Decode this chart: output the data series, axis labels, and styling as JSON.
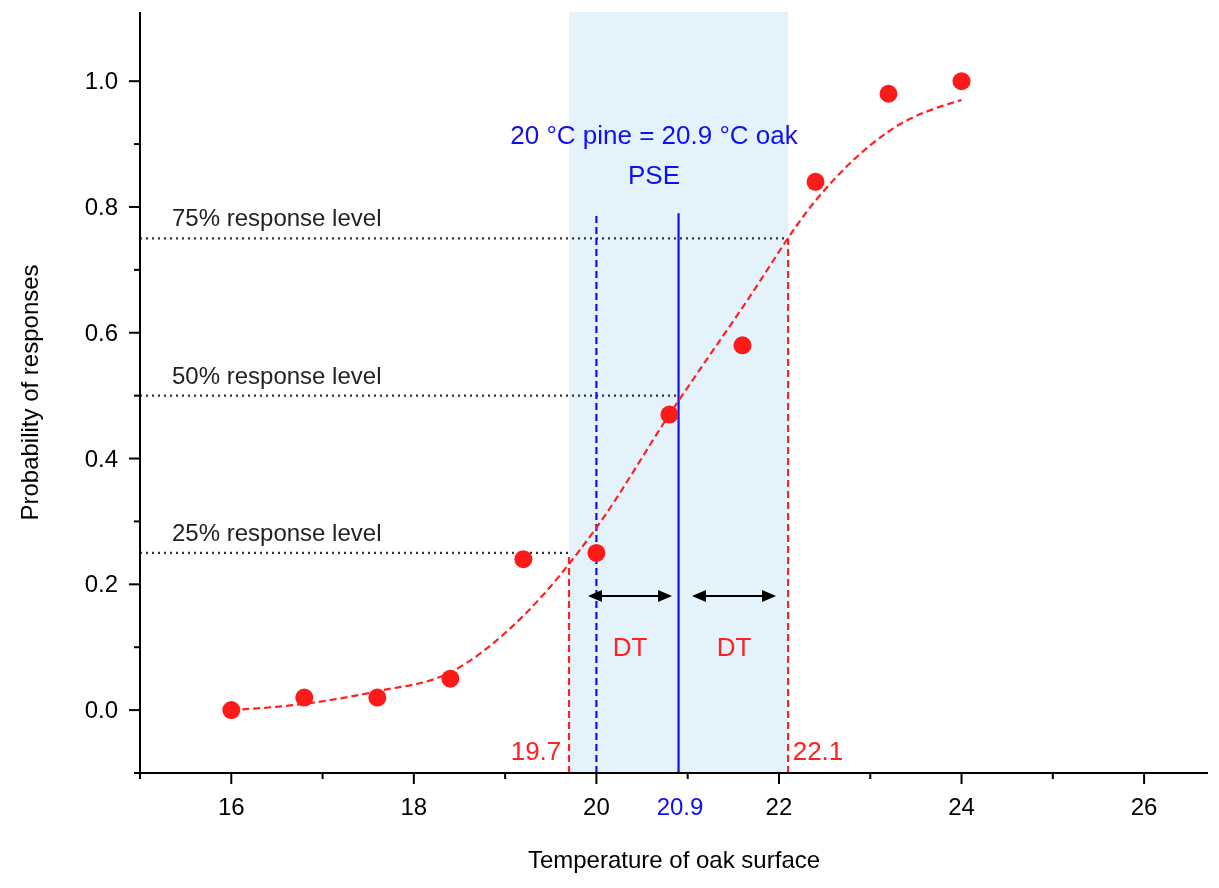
{
  "chart_data": {
    "type": "scatter",
    "xlabel": "Temperature of oak surface",
    "ylabel": "Probability of responses",
    "xlim": [
      15,
      26.7
    ],
    "ylim": [
      -0.1,
      1.11
    ],
    "xticks": [
      {
        "value": 15,
        "label": null
      },
      16,
      {
        "value": 17,
        "label": null
      },
      18,
      {
        "value": 19,
        "label": null
      },
      20,
      {
        "value": 21,
        "label": null
      },
      22,
      {
        "value": 23,
        "label": null
      },
      24,
      {
        "value": 25,
        "label": null
      },
      26
    ],
    "yticks": [
      {
        "value": -0.1,
        "label": null
      },
      {
        "value": 0,
        "label": "0.0"
      },
      {
        "value": 0.1,
        "label": null
      },
      0.2,
      {
        "value": 0.3,
        "label": null
      },
      0.4,
      {
        "value": 0.5,
        "label": null
      },
      0.6,
      {
        "value": 0.7,
        "label": null
      },
      0.8,
      {
        "value": 0.9,
        "label": null
      },
      {
        "value": 1,
        "label": "1.0"
      }
    ],
    "grid": false,
    "bands": [
      {
        "axis": "x",
        "from": 19.7,
        "to": 22.1,
        "color": "#dff0fb"
      }
    ],
    "series": [
      {
        "type": "line",
        "name": "75% response level",
        "color": "#333333",
        "line_style": "dotted",
        "x": [
          15,
          22.1
        ],
        "values": [
          0.75,
          0.75
        ]
      },
      {
        "type": "line",
        "name": "50% response level",
        "color": "#333333",
        "line_style": "dotted",
        "x": [
          15,
          20.9
        ],
        "values": [
          0.5,
          0.5
        ]
      },
      {
        "type": "line",
        "name": "25% response level",
        "color": "#333333",
        "line_style": "dotted",
        "x": [
          15,
          19.7
        ],
        "values": [
          0.25,
          0.25
        ]
      },
      {
        "type": "line",
        "color": "#ff2020",
        "line_style": "dashed",
        "x": [
          19.7,
          19.7
        ],
        "values": [
          -0.1,
          0.25
        ]
      },
      {
        "type": "line",
        "color": "#ff2020",
        "line_style": "dashed",
        "x": [
          22.1,
          22.1
        ],
        "values": [
          -0.1,
          0.75
        ]
      },
      {
        "type": "line",
        "color": "#1010ee",
        "line_style": "dashed",
        "x": [
          20,
          20
        ],
        "values": [
          -0.1,
          0.79
        ]
      },
      {
        "type": "line",
        "color": "#1010ee",
        "line_style": "solid",
        "x": [
          20.9,
          20.9
        ],
        "values": [
          -0.1,
          0.79
        ]
      },
      {
        "type": "line",
        "color": "#ff2020",
        "line_style": "dashed",
        "x": [
          16,
          16.8,
          17.6,
          18.4,
          19.2,
          20,
          20.8,
          21.6,
          22.4,
          23.2,
          24
        ],
        "values": [
          0,
          0.01,
          0.03,
          0.06,
          0.15,
          0.29,
          0.47,
          0.64,
          0.81,
          0.92,
          0.97
        ]
      },
      {
        "marker": "circle",
        "color": "#ff1a1a",
        "x": [
          16,
          16.8,
          17.6,
          18.4,
          19.2,
          20,
          20.8,
          21.6,
          22.4,
          23.2,
          24
        ],
        "values": [
          0,
          0.02,
          0.02,
          0.05,
          0.24,
          0.25,
          0.47,
          0.58,
          0.84,
          0.98,
          1.0
        ]
      }
    ],
    "annotations": [
      "20 °C pine = 20.9 °C oak",
      "PSE",
      "DT",
      "DT",
      "19.7",
      "22.1",
      "20.9"
    ]
  }
}
